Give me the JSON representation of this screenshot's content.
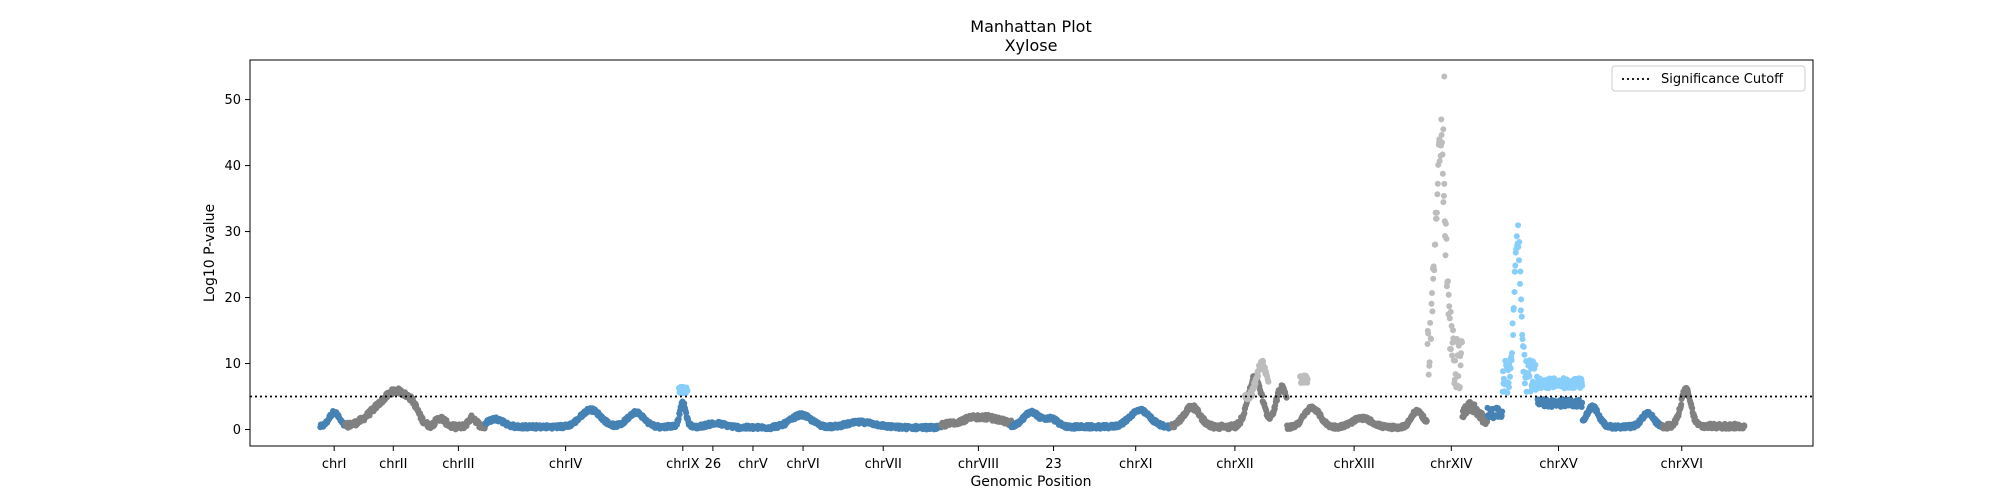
{
  "chart_data": {
    "type": "scatter",
    "title": "Manhattan Plot",
    "subtitle": "Xylose",
    "xlabel": "Genomic Position",
    "ylabel": "Log10 P-value",
    "xlim": [
      0,
      1560
    ],
    "ylim": [
      -2.5,
      56
    ],
    "yticks": [
      0,
      10,
      20,
      30,
      40,
      50
    ],
    "grid": false,
    "legend": {
      "position": "top-right",
      "entries": [
        "Significance Cutoff"
      ]
    },
    "cutoff": 5,
    "colors": {
      "dark_blue": "#4682b4",
      "dark_gray": "#808080",
      "light_gray": "#bdbdbd",
      "light_blue": "#87cefa",
      "line": "#000000"
    },
    "xticks": [
      {
        "label": "chrI",
        "x": 84
      },
      {
        "label": "chrII",
        "x": 143
      },
      {
        "label": "chrIII",
        "x": 208
      },
      {
        "label": "chrIV",
        "x": 315
      },
      {
        "label": "chrIX",
        "x": 432
      },
      {
        "label": "26",
        "x": 462
      },
      {
        "label": "chrV",
        "x": 502
      },
      {
        "label": "chrVI",
        "x": 552
      },
      {
        "label": "chrVII",
        "x": 632
      },
      {
        "label": "chrVIII",
        "x": 727
      },
      {
        "label": "23",
        "x": 802
      },
      {
        "label": "chrXI",
        "x": 884
      },
      {
        "label": "chrXII",
        "x": 983
      },
      {
        "label": "chrXIII",
        "x": 1102
      },
      {
        "label": "chrXIV",
        "x": 1199
      },
      {
        "label": "chrXV",
        "x": 1306
      },
      {
        "label": "chrXVI",
        "x": 1429
      }
    ],
    "segments": [
      {
        "x0": 70,
        "x1": 95,
        "color": "dark_blue",
        "base": 0.4,
        "noise": 0.3,
        "peaks": [
          [
            84,
            2.2,
            5
          ]
        ]
      },
      {
        "x0": 95,
        "x1": 180,
        "color": "dark_gray",
        "base": 0.5,
        "noise": 0.4,
        "peaks": [
          [
            135,
            3.4,
            15
          ],
          [
            150,
            3.0,
            10
          ],
          [
            163,
            1.8,
            6
          ]
        ]
      },
      {
        "x0": 180,
        "x1": 235,
        "color": "dark_gray",
        "base": 0.4,
        "noise": 0.4,
        "peaks": [
          [
            190,
            1.3,
            5
          ],
          [
            222,
            1.4,
            4
          ]
        ]
      },
      {
        "x0": 235,
        "x1": 415,
        "color": "dark_blue",
        "base": 0.4,
        "noise": 0.3,
        "peaks": [
          [
            245,
            1.2,
            8
          ],
          [
            340,
            2.6,
            10
          ],
          [
            385,
            2.2,
            8
          ]
        ]
      },
      {
        "x0": 415,
        "x1": 442,
        "color": "dark_blue",
        "base": 0.5,
        "noise": 0.3,
        "peaks": [
          [
            432,
            3.5,
            3
          ]
        ]
      },
      {
        "x0": 428,
        "x1": 437,
        "color": "light_blue",
        "base": 6.0,
        "noise": 0.5,
        "peaks": []
      },
      {
        "x0": 442,
        "x1": 520,
        "color": "dark_blue",
        "base": 0.3,
        "noise": 0.3,
        "peaks": [
          [
            465,
            0.6,
            10
          ]
        ]
      },
      {
        "x0": 520,
        "x1": 580,
        "color": "dark_blue",
        "base": 0.4,
        "noise": 0.3,
        "peaks": [
          [
            550,
            1.8,
            10
          ]
        ]
      },
      {
        "x0": 580,
        "x1": 690,
        "color": "dark_blue",
        "base": 0.3,
        "noise": 0.3,
        "peaks": [
          [
            610,
            0.8,
            15
          ]
        ]
      },
      {
        "x0": 690,
        "x1": 760,
        "color": "dark_gray",
        "base": 0.5,
        "noise": 0.4,
        "peaks": [
          [
            730,
            1.4,
            20
          ]
        ]
      },
      {
        "x0": 760,
        "x1": 855,
        "color": "dark_blue",
        "base": 0.4,
        "noise": 0.3,
        "peaks": [
          [
            780,
            2.2,
            8
          ],
          [
            800,
            1.2,
            6
          ]
        ]
      },
      {
        "x0": 855,
        "x1": 920,
        "color": "dark_blue",
        "base": 0.4,
        "noise": 0.3,
        "peaks": [
          [
            888,
            2.5,
            10
          ]
        ]
      },
      {
        "x0": 920,
        "x1": 1035,
        "color": "dark_gray",
        "base": 0.4,
        "noise": 0.4,
        "peaks": [
          [
            940,
            3.0,
            8
          ],
          [
            1003,
            7.5,
            7
          ],
          [
            1030,
            6.0,
            6
          ]
        ]
      },
      {
        "x0": 993,
        "x1": 1017,
        "color": "light_gray",
        "base": 5.0,
        "noise": 0.6,
        "peaks": [
          [
            1010,
            5.0,
            5
          ]
        ]
      },
      {
        "x0": 1048,
        "x1": 1056,
        "color": "light_gray",
        "base": 7.5,
        "noise": 0.8,
        "peaks": []
      },
      {
        "x0": 1035,
        "x1": 1175,
        "color": "dark_gray",
        "base": 0.3,
        "noise": 0.3,
        "peaks": [
          [
            1060,
            3.0,
            8
          ],
          [
            1110,
            1.4,
            10
          ],
          [
            1165,
            2.5,
            6
          ]
        ]
      },
      {
        "x0": 1175,
        "x1": 1210,
        "color": "light_gray",
        "base": 10,
        "noise": 4.0,
        "peaks": [
          [
            1188,
            33,
            5
          ]
        ]
      },
      {
        "x0": 1210,
        "x1": 1235,
        "color": "dark_gray",
        "base": 1.5,
        "noise": 0.8,
        "peaks": [
          [
            1218,
            2.0,
            6
          ]
        ]
      },
      {
        "x0": 1235,
        "x1": 1250,
        "color": "dark_blue",
        "base": 2.5,
        "noise": 0.8,
        "peaks": []
      },
      {
        "x0": 1250,
        "x1": 1285,
        "color": "light_blue",
        "base": 8,
        "noise": 2.5,
        "peaks": [
          [
            1265,
            22,
            3
          ]
        ]
      },
      {
        "x0": 1285,
        "x1": 1330,
        "color": "light_blue",
        "base": 7,
        "noise": 0.8,
        "peaks": []
      },
      {
        "x0": 1285,
        "x1": 1330,
        "color": "dark_blue",
        "base": 4,
        "noise": 0.6,
        "peaks": []
      },
      {
        "x0": 1330,
        "x1": 1410,
        "color": "dark_blue",
        "base": 0.4,
        "noise": 0.3,
        "peaks": [
          [
            1340,
            3.0,
            6
          ],
          [
            1395,
            2.0,
            6
          ]
        ]
      },
      {
        "x0": 1410,
        "x1": 1492,
        "color": "dark_gray",
        "base": 0.5,
        "noise": 0.4,
        "peaks": [
          [
            1433,
            5.5,
            5
          ]
        ]
      }
    ]
  }
}
